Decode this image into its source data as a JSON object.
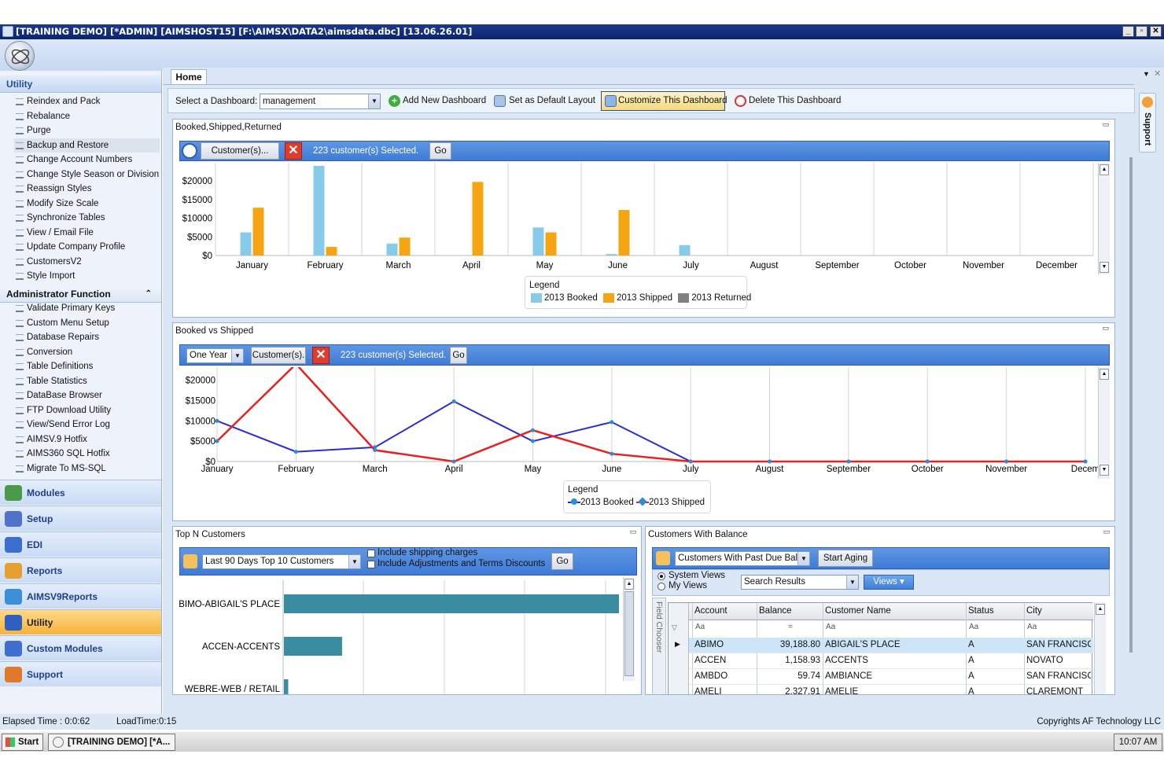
{
  "window": {
    "title": "[TRAINING DEMO] [*ADMIN] [AIMSHOST15] [F:\\AIMSX\\DATA2\\aimsdata.dbc] [13.06.26.01]"
  },
  "sidebar": {
    "section1": "Utility",
    "utility_items": [
      "Reindex and Pack",
      "Rebalance",
      "Purge",
      "Backup and Restore",
      "Change Account Numbers",
      "Change Style Season or Division",
      "Reassign Styles",
      "Modify Size Scale",
      "Synchronize Tables",
      "View / Email File",
      "Update Company Profile",
      "CustomersV2",
      "Style Import"
    ],
    "section2": "Administrator Function",
    "admin_items": [
      "Validate Primary Keys",
      "Custom Menu Setup",
      "Database Repairs",
      "Conversion",
      "Table Definitions",
      "Table Statistics",
      "DataBase Browser",
      "FTP Download Utility",
      "View/Send Error Log",
      "AIMSV.9 Hotfix",
      "AIMS360 SQL Hotfix",
      "Migrate To MS-SQL"
    ],
    "nav": [
      {
        "label": "Modules",
        "icon": "modules-icon"
      },
      {
        "label": "Setup",
        "icon": "setup-icon"
      },
      {
        "label": "EDI",
        "icon": "edi-icon"
      },
      {
        "label": "Reports",
        "icon": "reports-icon"
      },
      {
        "label": "AIMSV9Reports",
        "icon": "aimsv9reports-icon"
      },
      {
        "label": "Utility",
        "icon": "utility-icon"
      },
      {
        "label": "Custom Modules",
        "icon": "custom-modules-icon"
      },
      {
        "label": "Support",
        "icon": "support-icon"
      }
    ]
  },
  "tabs": {
    "home": "Home"
  },
  "toolbar": {
    "select_label": "Select a Dashboard:",
    "dashboard_value": "management",
    "add": "Add New Dashboard",
    "default_layout": "Set as Default Layout",
    "customize": "Customize This Dashboard",
    "delete": "Delete This Dashboard"
  },
  "support_tab": "Support",
  "panel1": {
    "title": "Booked,Shipped,Returned",
    "customers_button": "Customer(s)...",
    "selected_text": "223 customer(s) Selected.",
    "go": "Go",
    "legend_title": "Legend"
  },
  "panel2": {
    "title": "Booked vs Shipped",
    "period_value": "One Year",
    "customers_button": "Customer(s).",
    "selected_text": "223 customer(s) Selected.",
    "go": "Go",
    "legend_title": "Legend"
  },
  "panel3": {
    "title": "Top N Customers",
    "filter_value": "Last 90 Days Top 10 Customers",
    "chk_shipping": "Include shipping charges",
    "chk_adjust": "Include Adjustments and Terms Discounts",
    "go": "Go"
  },
  "panel4": {
    "title": "Customers With Balance",
    "view_value": "Customers With Past Due Bala",
    "start_aging": "Start Aging",
    "radio_system": "System Views",
    "radio_my": "My Views",
    "search_value": "Search Results",
    "views_button": "Views",
    "field_chooser": "Field Chooser",
    "columns": [
      "Account",
      "Balance",
      "Customer Name",
      "Status",
      "City"
    ],
    "filter_row": [
      "Aa",
      "=",
      "Aa",
      "Aa",
      "Aa"
    ],
    "rows": [
      [
        "ABIMO",
        "39,188.80",
        "ABIGAIL'S PLACE",
        "A",
        "SAN FRANCISCO"
      ],
      [
        "ACCEN",
        "1,158.93",
        "ACCENTS",
        "A",
        "NOVATO"
      ],
      [
        "AMBDO",
        "59.74",
        "AMBIANCE",
        "A",
        "SAN FRANCISCO"
      ],
      [
        "AMELI",
        "2,327.91",
        "AMELIE",
        "A",
        "CLAREMONT"
      ]
    ]
  },
  "status": {
    "elapsed": "Elapsed Time : 0:0:62",
    "load": "LoadTime:0:15",
    "copyright": "Copyrights AF Technology LLC"
  },
  "taskbar": {
    "start": "Start",
    "task": "[TRAINING DEMO] [*A...",
    "clock": "10:07 AM"
  },
  "colors": {
    "booked": "#87cbeb",
    "shipped": "#f5a512",
    "returned": "#808080",
    "line_booked": "#2b2bd6",
    "line_shipped": "#e82020",
    "accent": "#3e7bd6"
  },
  "chart_data": [
    {
      "type": "bar",
      "categories": [
        "January",
        "February",
        "March",
        "April",
        "May",
        "June",
        "July",
        "August",
        "September",
        "October",
        "November",
        "December"
      ],
      "yticks": [
        "$20000",
        "$15000",
        "$10000",
        "$5000",
        "$0"
      ],
      "ylim": [
        0,
        24000
      ],
      "legend_title": "Legend",
      "series": [
        {
          "name": "2013 Booked",
          "values": [
            6200,
            24000,
            3200,
            0,
            7500,
            400,
            2800,
            0,
            0,
            0,
            0,
            0
          ]
        },
        {
          "name": "2013 Shipped",
          "values": [
            12800,
            2300,
            4800,
            19700,
            6200,
            12200,
            0,
            0,
            0,
            0,
            0,
            0
          ]
        },
        {
          "name": "2013 Returned",
          "values": [
            0,
            0,
            0,
            0,
            0,
            0,
            0,
            0,
            0,
            0,
            0,
            0
          ]
        }
      ]
    },
    {
      "type": "line",
      "categories": [
        "January",
        "February",
        "March",
        "April",
        "May",
        "June",
        "July",
        "August",
        "September",
        "October",
        "November",
        "December"
      ],
      "tick_labels": [
        "January",
        "February",
        "March",
        "April",
        "May",
        "June",
        "July",
        "August",
        "September",
        "October",
        "November",
        "Decem"
      ],
      "yticks": [
        "$20000",
        "$15000",
        "$10000",
        "$5000",
        "$0"
      ],
      "ylim": [
        0,
        24000
      ],
      "legend_title": "Legend",
      "series": [
        {
          "name": "2013 Booked",
          "values": [
            10000,
            2400,
            3500,
            14800,
            5000,
            9700,
            0,
            0,
            0,
            0,
            0,
            0
          ]
        },
        {
          "name": "2013 Shipped",
          "values": [
            5000,
            24000,
            2800,
            0,
            7700,
            1900,
            0,
            0,
            0,
            0,
            0,
            0
          ]
        }
      ]
    },
    {
      "type": "bar",
      "orientation": "horizontal",
      "categories": [
        "ABIMO-ABIGAIL'S PLACE",
        "ACCEN-ACCENTS",
        "WEBRE-WEB / RETAIL"
      ],
      "values": [
        39188.8,
        6800,
        500
      ]
    }
  ]
}
